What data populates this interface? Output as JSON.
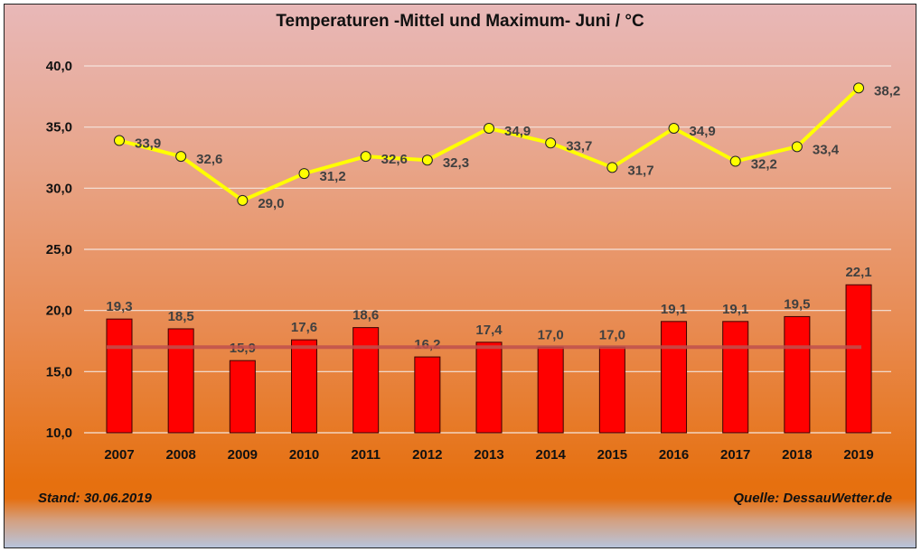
{
  "chart_data": {
    "type": "bar+line",
    "title": "Temperaturen -Mittel und Maximum-  Juni / °C",
    "categories": [
      "2007",
      "2008",
      "2009",
      "2010",
      "2011",
      "2012",
      "2013",
      "2014",
      "2015",
      "2016",
      "2017",
      "2018",
      "2019"
    ],
    "series": [
      {
        "type": "bar",
        "values": [
          19.3,
          18.5,
          15.9,
          17.6,
          18.6,
          16.2,
          17.4,
          17.0,
          17.0,
          19.1,
          19.1,
          19.5,
          22.1
        ],
        "color": "#ff0000"
      },
      {
        "type": "line",
        "values": [
          33.9,
          32.6,
          29.0,
          31.2,
          32.6,
          32.3,
          34.9,
          33.7,
          31.7,
          34.9,
          32.2,
          33.4,
          38.2
        ],
        "color": "#ffff00"
      },
      {
        "type": "line",
        "values": [
          17.0,
          17.0,
          17.0,
          17.0,
          17.0,
          17.0,
          17.0,
          17.0,
          17.0,
          17.0,
          17.0,
          17.0,
          17.0
        ],
        "color": "#c0504d"
      }
    ],
    "ylim": [
      10,
      40
    ],
    "yticks": [
      "10,0",
      "15,0",
      "20,0",
      "25,0",
      "30,0",
      "35,0",
      "40,0"
    ],
    "grid": true
  },
  "footer": {
    "stand": "Stand: 30.06.2019",
    "quelle": "Quelle: DessauWetter.de"
  }
}
